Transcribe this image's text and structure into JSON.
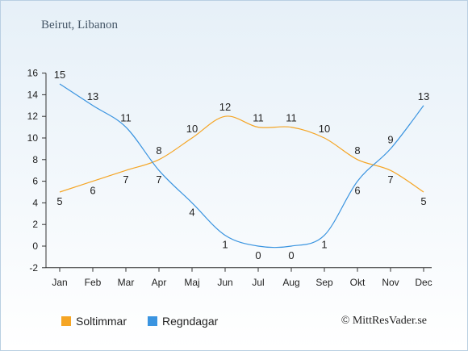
{
  "title": "Beirut, Libanon",
  "credit": "© MittResVader.se",
  "chart_data": {
    "type": "line",
    "categories": [
      "Jan",
      "Feb",
      "Mar",
      "Apr",
      "Maj",
      "Jun",
      "Jul",
      "Aug",
      "Sep",
      "Okt",
      "Nov",
      "Dec"
    ],
    "ylim": [
      -2,
      16
    ],
    "yticks": [
      -2,
      0,
      2,
      4,
      6,
      8,
      10,
      12,
      14,
      16
    ],
    "grid": false,
    "legend_position": "bottom",
    "series": [
      {
        "name": "Soltimmar",
        "color": "#f5a524",
        "values": [
          5,
          6,
          7,
          8,
          10,
          12,
          11,
          11,
          10,
          8,
          7,
          5
        ]
      },
      {
        "name": "Regndagar",
        "color": "#3a94e0",
        "values": [
          15,
          13,
          11,
          7,
          4,
          1,
          0,
          0,
          1,
          6,
          9,
          13
        ]
      }
    ],
    "data_labels": [
      [
        "5",
        "6",
        "7",
        "8",
        "10",
        "12",
        "11",
        "11",
        "10",
        "8",
        "7",
        "5"
      ],
      [
        "15",
        "13",
        "11",
        "7",
        "4",
        "1",
        "0",
        "0",
        "1",
        "6",
        "9",
        "13"
      ]
    ]
  }
}
